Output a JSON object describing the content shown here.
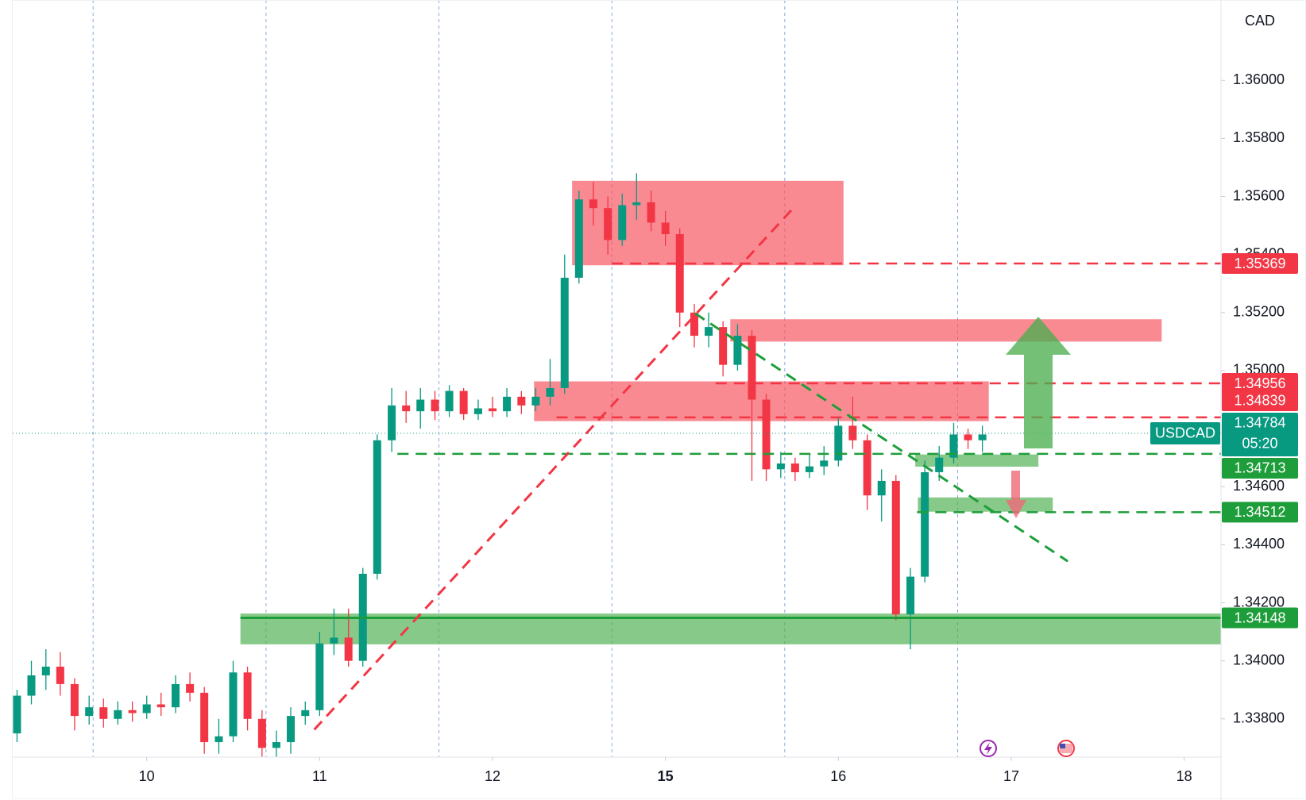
{
  "chart_data": {
    "type": "candlestick",
    "currency_label": "CAD",
    "symbol": "USDCAD",
    "countdown": "05:20",
    "current_price": 1.34784,
    "up_color": "#089981",
    "down_color": "#f23645",
    "xlim": [
      -0.775,
      6.213
    ],
    "xticks": [
      {
        "value": 0,
        "label": "10"
      },
      {
        "value": 1,
        "label": "11"
      },
      {
        "value": 2,
        "label": "12"
      },
      {
        "value": 3,
        "label": "15"
      },
      {
        "value": 4,
        "label": "16"
      },
      {
        "value": 5,
        "label": "17"
      },
      {
        "value": 6,
        "label": "18"
      }
    ],
    "week_start_tick": 3,
    "x_gridlines": [
      -0.31,
      0.69,
      1.69,
      2.69,
      3.69,
      4.69
    ],
    "ylim": [
      1.33669,
      1.36254
    ],
    "yticks": [
      {
        "value": 1.338,
        "label": "1.33800"
      },
      {
        "value": 1.34,
        "label": "1.34000"
      },
      {
        "value": 1.342,
        "label": "1.34200"
      },
      {
        "value": 1.344,
        "label": "1.34400"
      },
      {
        "value": 1.346,
        "label": "1.34600"
      },
      {
        "value": 1.348,
        "label": "1.34800"
      },
      {
        "value": 1.35,
        "label": "1.35000"
      },
      {
        "value": 1.352,
        "label": "1.35200"
      },
      {
        "value": 1.354,
        "label": "1.35400"
      },
      {
        "value": 1.356,
        "label": "1.35600"
      },
      {
        "value": 1.358,
        "label": "1.35800"
      },
      {
        "value": 1.36,
        "label": "1.36000"
      }
    ],
    "x": [
      -0.75,
      -0.667,
      -0.583,
      -0.5,
      -0.417,
      -0.333,
      -0.25,
      -0.167,
      -0.083,
      0,
      0.083,
      0.167,
      0.25,
      0.333,
      0.417,
      0.5,
      0.583,
      0.667,
      0.75,
      0.833,
      0.917,
      1,
      1.083,
      1.167,
      1.25,
      1.333,
      1.417,
      1.5,
      1.583,
      1.667,
      1.75,
      1.833,
      1.917,
      2,
      2.083,
      2.167,
      2.25,
      2.333,
      2.417,
      2.5,
      2.583,
      2.667,
      2.75,
      2.833,
      2.917,
      3,
      3.083,
      3.167,
      3.25,
      3.333,
      3.417,
      3.5,
      3.583,
      3.667,
      3.75,
      3.833,
      3.917,
      4,
      4.083,
      4.167,
      4.25,
      4.333,
      4.417,
      4.5,
      4.583,
      4.667,
      4.75,
      4.833
    ],
    "open": [
      1.3375,
      1.3388,
      1.3395,
      1.3398,
      1.3392,
      1.3381,
      1.3384,
      1.338,
      1.3383,
      1.3382,
      1.3385,
      1.3384,
      1.3392,
      1.3389,
      1.3372,
      1.3374,
      1.3396,
      1.338,
      1.337,
      1.3372,
      1.3381,
      1.3383,
      1.3406,
      1.3408,
      1.34,
      1.343,
      1.3476,
      1.3488,
      1.3486,
      1.349,
      1.3486,
      1.3493,
      1.3485,
      1.3487,
      1.3486,
      1.3491,
      1.3488,
      1.3491,
      1.3494,
      1.3532,
      1.3559,
      1.3556,
      1.3545,
      1.3557,
      1.3558,
      1.3551,
      1.3547,
      1.352,
      1.3512,
      1.3515,
      1.3502,
      1.3512,
      1.349,
      1.3466,
      1.3468,
      1.3465,
      1.3467,
      1.3469,
      1.3481,
      1.3476,
      1.3457,
      1.3462,
      1.3416,
      1.3429,
      1.3465,
      1.347,
      1.3478,
      1.3476
    ],
    "high": [
      1.339,
      1.34,
      1.3404,
      1.3403,
      1.3394,
      1.3388,
      1.3387,
      1.3386,
      1.3386,
      1.3388,
      1.3389,
      1.3395,
      1.3396,
      1.3391,
      1.338,
      1.34,
      1.3398,
      1.3383,
      1.3376,
      1.3384,
      1.3386,
      1.341,
      1.3418,
      1.3418,
      1.3432,
      1.3478,
      1.3494,
      1.3493,
      1.3494,
      1.3493,
      1.3495,
      1.3494,
      1.349,
      1.3491,
      1.3494,
      1.3493,
      1.3494,
      1.3504,
      1.354,
      1.3562,
      1.3565,
      1.356,
      1.3561,
      1.3568,
      1.3562,
      1.3555,
      1.3549,
      1.3523,
      1.352,
      1.3517,
      1.3516,
      1.3514,
      1.3492,
      1.3472,
      1.347,
      1.3471,
      1.3474,
      1.3484,
      1.3491,
      1.3478,
      1.3466,
      1.3464,
      1.3432,
      1.3469,
      1.3474,
      1.3482,
      1.348,
      1.3481
    ],
    "low": [
      1.3372,
      1.3385,
      1.339,
      1.3388,
      1.3376,
      1.3378,
      1.3377,
      1.3378,
      1.3379,
      1.338,
      1.3381,
      1.3382,
      1.3386,
      1.3368,
      1.3368,
      1.3372,
      1.3376,
      1.3367,
      1.3367,
      1.3368,
      1.3378,
      1.3381,
      1.3402,
      1.3398,
      1.3398,
      1.3428,
      1.3472,
      1.3482,
      1.348,
      1.3483,
      1.3484,
      1.3483,
      1.3483,
      1.3484,
      1.3484,
      1.3485,
      1.3486,
      1.3488,
      1.3492,
      1.353,
      1.355,
      1.354,
      1.3543,
      1.3552,
      1.3548,
      1.3543,
      1.3515,
      1.3508,
      1.3508,
      1.3498,
      1.35,
      1.3462,
      1.3462,
      1.3463,
      1.3462,
      1.3463,
      1.3464,
      1.3467,
      1.3473,
      1.3452,
      1.3448,
      1.3414,
      1.3404,
      1.3427,
      1.3462,
      1.3468,
      1.3473,
      1.3472
    ],
    "close": [
      1.3388,
      1.3395,
      1.3398,
      1.3392,
      1.3381,
      1.3384,
      1.338,
      1.3383,
      1.3382,
      1.3385,
      1.3384,
      1.3392,
      1.3389,
      1.3372,
      1.3374,
      1.3396,
      1.338,
      1.337,
      1.3372,
      1.3381,
      1.3383,
      1.3406,
      1.3408,
      1.34,
      1.343,
      1.3476,
      1.3488,
      1.3486,
      1.349,
      1.3486,
      1.3493,
      1.3485,
      1.3487,
      1.3486,
      1.3491,
      1.3488,
      1.3491,
      1.3494,
      1.3532,
      1.3559,
      1.3556,
      1.3545,
      1.3557,
      1.3558,
      1.3551,
      1.3547,
      1.352,
      1.3512,
      1.3515,
      1.3502,
      1.3512,
      1.349,
      1.3466,
      1.3468,
      1.3465,
      1.3467,
      1.3469,
      1.3481,
      1.3476,
      1.3457,
      1.3462,
      1.3416,
      1.3429,
      1.3465,
      1.347,
      1.3478,
      1.3476,
      1.3478
    ],
    "zones": [
      {
        "x": [
          2.46,
          4.03
        ],
        "y": [
          1.35363,
          1.35654
        ],
        "color": "#f7525f"
      },
      {
        "x": [
          3.375,
          5.87
        ],
        "y": [
          1.351,
          1.35177
        ],
        "color": "#f7525f"
      },
      {
        "x": [
          2.24,
          4.87
        ],
        "y": [
          1.34826,
          1.34963
        ],
        "color": "#f7525f"
      },
      {
        "x": [
          4.445,
          5.157
        ],
        "y": [
          1.34669,
          1.34711
        ],
        "color": "#4caf50"
      },
      {
        "x": [
          4.46,
          5.24
        ],
        "y": [
          1.34514,
          1.34563
        ],
        "color": "#4caf50"
      },
      {
        "x": [
          0.542,
          6.213
        ],
        "y": [
          1.34057,
          1.34163
        ],
        "color": "#4caf50"
      }
    ],
    "levels": [
      {
        "price": 1.35369,
        "x_start": 2.69,
        "color": "#f23645",
        "style": "dashed"
      },
      {
        "price": 1.34956,
        "x_start": 3.29,
        "color": "#f23645",
        "style": "dashed"
      },
      {
        "price": 1.34839,
        "x_start": 2.37,
        "color": "#f23645",
        "style": "dashed"
      },
      {
        "price": 1.34713,
        "x_start": 1.45,
        "color": "#1e9e3a",
        "style": "dashed"
      },
      {
        "price": 1.34512,
        "x_start": 4.455,
        "color": "#1e9e3a",
        "style": "dashed"
      },
      {
        "price": 1.34148,
        "x_start": 0.542,
        "color": "#1e9e3a",
        "style": "solid"
      }
    ],
    "trendlines": [
      {
        "x": [
          0.969,
          3.753
        ],
        "y": [
          1.33763,
          1.35569
        ],
        "color": "#f23645"
      },
      {
        "x": [
          3.172,
          5.327
        ],
        "y": [
          1.35197,
          1.34343
        ],
        "color": "#1e9e3a"
      }
    ]
  }
}
